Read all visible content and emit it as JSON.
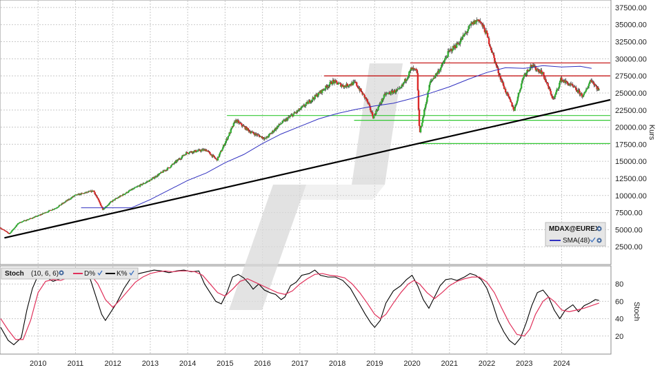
{
  "chart_data": [
    {
      "type": "candlestick",
      "ylabel": "Kurs",
      "ylim": [
        0,
        38500
      ],
      "y_ticks": [
        2500,
        5000,
        7500,
        10000,
        12500,
        15000,
        17500,
        20000,
        22500,
        25000,
        27500,
        30000,
        32500,
        35000,
        37500
      ],
      "y_tick_labels": [
        "2500.00",
        "5000.00",
        "7500.00",
        "10000.00",
        "12500.00",
        "15000.00",
        "17500.00",
        "20000.00",
        "22500.00",
        "25000.00",
        "27500.00",
        "30000.00",
        "32500.00",
        "35000.00",
        "37500.00"
      ],
      "x_range": [
        2009.0,
        2025.3
      ],
      "x_ticks": [
        "2010",
        "2011",
        "2012",
        "2013",
        "2014",
        "2015",
        "2016",
        "2017",
        "2018",
        "2019",
        "2020",
        "2021",
        "2022",
        "2023",
        "2024"
      ],
      "grid": true,
      "legend": {
        "placement": "bottom-right",
        "title": "MDAX@EUREX",
        "entries": [
          {
            "name": "SMA(48)",
            "color": "#3030c0"
          }
        ]
      },
      "price_path": [
        [
          2009.0,
          5300
        ],
        [
          2009.25,
          4400
        ],
        [
          2009.5,
          6000
        ],
        [
          2010.0,
          7000
        ],
        [
          2010.5,
          8200
        ],
        [
          2011.0,
          10000
        ],
        [
          2011.5,
          10700
        ],
        [
          2011.75,
          8000
        ],
        [
          2012.0,
          9200
        ],
        [
          2012.5,
          10800
        ],
        [
          2013.0,
          12200
        ],
        [
          2013.5,
          14000
        ],
        [
          2014.0,
          16300
        ],
        [
          2014.5,
          16700
        ],
        [
          2014.8,
          15200
        ],
        [
          2015.0,
          17500
        ],
        [
          2015.3,
          21000
        ],
        [
          2015.7,
          19300
        ],
        [
          2016.1,
          18300
        ],
        [
          2016.5,
          20500
        ],
        [
          2017.0,
          22500
        ],
        [
          2017.5,
          24800
        ],
        [
          2017.9,
          26700
        ],
        [
          2018.2,
          26000
        ],
        [
          2018.5,
          26500
        ],
        [
          2018.8,
          24000
        ],
        [
          2018.98,
          21500
        ],
        [
          2019.3,
          24800
        ],
        [
          2019.7,
          25500
        ],
        [
          2020.0,
          28500
        ],
        [
          2020.15,
          28200
        ],
        [
          2020.22,
          19000
        ],
        [
          2020.5,
          26500
        ],
        [
          2020.8,
          28800
        ],
        [
          2021.0,
          31000
        ],
        [
          2021.3,
          32500
        ],
        [
          2021.6,
          35000
        ],
        [
          2021.8,
          35800
        ],
        [
          2022.0,
          33800
        ],
        [
          2022.3,
          28500
        ],
        [
          2022.5,
          25500
        ],
        [
          2022.75,
          22500
        ],
        [
          2023.0,
          27500
        ],
        [
          2023.2,
          29000
        ],
        [
          2023.5,
          28000
        ],
        [
          2023.8,
          24000
        ],
        [
          2024.0,
          27000
        ],
        [
          2024.3,
          26000
        ],
        [
          2024.6,
          24500
        ],
        [
          2024.8,
          27000
        ],
        [
          2025.0,
          25500
        ]
      ],
      "sma48": [
        [
          2011.15,
          8200
        ],
        [
          2011.75,
          8200
        ],
        [
          2012.5,
          8200
        ],
        [
          2013.0,
          9400
        ],
        [
          2013.5,
          10800
        ],
        [
          2014.0,
          12200
        ],
        [
          2014.5,
          13300
        ],
        [
          2015.0,
          14800
        ],
        [
          2015.5,
          16000
        ],
        [
          2016.0,
          17600
        ],
        [
          2016.5,
          19000
        ],
        [
          2017.0,
          20100
        ],
        [
          2017.5,
          21200
        ],
        [
          2018.0,
          22000
        ],
        [
          2018.5,
          22600
        ],
        [
          2019.0,
          23100
        ],
        [
          2019.5,
          23500
        ],
        [
          2020.0,
          24200
        ],
        [
          2020.5,
          25000
        ],
        [
          2021.0,
          25900
        ],
        [
          2021.5,
          27000
        ],
        [
          2022.0,
          28000
        ],
        [
          2022.5,
          28700
        ],
        [
          2023.0,
          28600
        ],
        [
          2023.5,
          29000
        ],
        [
          2024.0,
          28800
        ],
        [
          2024.5,
          28900
        ],
        [
          2024.8,
          28600
        ]
      ],
      "trendline": [
        [
          2009.1,
          3800
        ],
        [
          2025.3,
          24000
        ]
      ],
      "horizontal_lines": [
        {
          "color": "#c00000",
          "y": 29400,
          "x_from": 2019.95,
          "x_to": 2025.3
        },
        {
          "color": "#c00000",
          "y": 27500,
          "x_from": 2017.65,
          "x_to": 2025.3
        },
        {
          "color": "#32c832",
          "y": 21700,
          "x_from": 2015.05,
          "x_to": 2025.3
        },
        {
          "color": "#32c832",
          "y": 21000,
          "x_from": 2018.45,
          "x_to": 2025.3
        },
        {
          "color": "#32c832",
          "y": 17600,
          "x_from": 2020.2,
          "x_to": 2025.3
        }
      ]
    },
    {
      "type": "line",
      "ylabel": "Stoch",
      "ylim": [
        0,
        100
      ],
      "y_ticks": [
        20,
        40,
        60,
        80
      ],
      "y_tick_labels": [
        "20",
        "40",
        "60",
        "80"
      ],
      "grid": true,
      "legend": {
        "placement": "top-left",
        "title": "Stoch",
        "params": "(10, 6, 6)",
        "entries": [
          {
            "name": "D%",
            "color": "#e0305a"
          },
          {
            "name": "K%",
            "color": "#000000"
          }
        ]
      },
      "series": [
        {
          "name": "K%",
          "color": "#000000",
          "points": [
            [
              2009.0,
              30
            ],
            [
              2009.2,
              15
            ],
            [
              2009.35,
              10
            ],
            [
              2009.55,
              18
            ],
            [
              2009.7,
              50
            ],
            [
              2009.85,
              75
            ],
            [
              2010.0,
              90
            ],
            [
              2010.2,
              88
            ],
            [
              2010.4,
              83
            ],
            [
              2010.6,
              86
            ],
            [
              2010.8,
              92
            ],
            [
              2011.0,
              96
            ],
            [
              2011.2,
              95
            ],
            [
              2011.4,
              85
            ],
            [
              2011.55,
              65
            ],
            [
              2011.7,
              45
            ],
            [
              2011.8,
              38
            ],
            [
              2011.95,
              48
            ],
            [
              2012.1,
              58
            ],
            [
              2012.3,
              75
            ],
            [
              2012.5,
              88
            ],
            [
              2012.7,
              92
            ],
            [
              2012.9,
              94
            ],
            [
              2013.1,
              96
            ],
            [
              2013.3,
              95
            ],
            [
              2013.5,
              93
            ],
            [
              2013.7,
              95
            ],
            [
              2013.9,
              96
            ],
            [
              2014.1,
              94
            ],
            [
              2014.3,
              95
            ],
            [
              2014.45,
              80
            ],
            [
              2014.6,
              70
            ],
            [
              2014.75,
              60
            ],
            [
              2014.9,
              57
            ],
            [
              2015.05,
              70
            ],
            [
              2015.2,
              88
            ],
            [
              2015.35,
              91
            ],
            [
              2015.5,
              87
            ],
            [
              2015.65,
              80
            ],
            [
              2015.75,
              74
            ],
            [
              2015.9,
              80
            ],
            [
              2016.05,
              73
            ],
            [
              2016.2,
              70
            ],
            [
              2016.35,
              68
            ],
            [
              2016.5,
              62
            ],
            [
              2016.6,
              65
            ],
            [
              2016.75,
              78
            ],
            [
              2016.9,
              82
            ],
            [
              2017.05,
              90
            ],
            [
              2017.25,
              92
            ],
            [
              2017.4,
              96
            ],
            [
              2017.55,
              90
            ],
            [
              2017.75,
              88
            ],
            [
              2017.95,
              88
            ],
            [
              2018.15,
              84
            ],
            [
              2018.35,
              75
            ],
            [
              2018.55,
              60
            ],
            [
              2018.75,
              45
            ],
            [
              2018.9,
              35
            ],
            [
              2019.0,
              30
            ],
            [
              2019.15,
              38
            ],
            [
              2019.3,
              58
            ],
            [
              2019.5,
              72
            ],
            [
              2019.7,
              78
            ],
            [
              2019.85,
              85
            ],
            [
              2020.0,
              90
            ],
            [
              2020.15,
              78
            ],
            [
              2020.3,
              62
            ],
            [
              2020.45,
              52
            ],
            [
              2020.6,
              65
            ],
            [
              2020.75,
              78
            ],
            [
              2020.9,
              85
            ],
            [
              2021.05,
              86
            ],
            [
              2021.2,
              84
            ],
            [
              2021.4,
              88
            ],
            [
              2021.55,
              92
            ],
            [
              2021.7,
              90
            ],
            [
              2021.85,
              85
            ],
            [
              2022.0,
              75
            ],
            [
              2022.15,
              58
            ],
            [
              2022.3,
              38
            ],
            [
              2022.45,
              25
            ],
            [
              2022.6,
              15
            ],
            [
              2022.75,
              10
            ],
            [
              2022.9,
              18
            ],
            [
              2023.05,
              35
            ],
            [
              2023.2,
              55
            ],
            [
              2023.35,
              70
            ],
            [
              2023.5,
              73
            ],
            [
              2023.65,
              65
            ],
            [
              2023.8,
              50
            ],
            [
              2023.95,
              40
            ],
            [
              2024.1,
              50
            ],
            [
              2024.3,
              56
            ],
            [
              2024.45,
              48
            ],
            [
              2024.6,
              55
            ],
            [
              2024.75,
              58
            ],
            [
              2024.9,
              62
            ],
            [
              2025.0,
              61
            ]
          ]
        },
        {
          "name": "D%",
          "color": "#e0305a",
          "points": [
            [
              2009.0,
              40
            ],
            [
              2009.2,
              27
            ],
            [
              2009.4,
              16
            ],
            [
              2009.6,
              16
            ],
            [
              2009.8,
              38
            ],
            [
              2010.0,
              70
            ],
            [
              2010.2,
              83
            ],
            [
              2010.4,
              85
            ],
            [
              2010.6,
              84
            ],
            [
              2010.8,
              87
            ],
            [
              2011.0,
              91
            ],
            [
              2011.2,
              93
            ],
            [
              2011.4,
              91
            ],
            [
              2011.6,
              80
            ],
            [
              2011.8,
              62
            ],
            [
              2012.0,
              53
            ],
            [
              2012.2,
              62
            ],
            [
              2012.4,
              72
            ],
            [
              2012.6,
              82
            ],
            [
              2012.8,
              88
            ],
            [
              2013.0,
              92
            ],
            [
              2013.2,
              94
            ],
            [
              2013.4,
              95
            ],
            [
              2013.6,
              94
            ],
            [
              2013.8,
              95
            ],
            [
              2014.0,
              95
            ],
            [
              2014.2,
              94
            ],
            [
              2014.4,
              90
            ],
            [
              2014.6,
              80
            ],
            [
              2014.8,
              70
            ],
            [
              2015.0,
              66
            ],
            [
              2015.2,
              74
            ],
            [
              2015.4,
              83
            ],
            [
              2015.6,
              86
            ],
            [
              2015.8,
              82
            ],
            [
              2016.0,
              78
            ],
            [
              2016.2,
              74
            ],
            [
              2016.4,
              70
            ],
            [
              2016.6,
              68
            ],
            [
              2016.8,
              72
            ],
            [
              2017.0,
              80
            ],
            [
              2017.2,
              86
            ],
            [
              2017.4,
              91
            ],
            [
              2017.6,
              92
            ],
            [
              2017.8,
              90
            ],
            [
              2018.0,
              89
            ],
            [
              2018.2,
              87
            ],
            [
              2018.4,
              80
            ],
            [
              2018.6,
              70
            ],
            [
              2018.8,
              58
            ],
            [
              2019.0,
              45
            ],
            [
              2019.15,
              40
            ],
            [
              2019.3,
              45
            ],
            [
              2019.5,
              58
            ],
            [
              2019.7,
              70
            ],
            [
              2019.9,
              80
            ],
            [
              2020.05,
              84
            ],
            [
              2020.2,
              80
            ],
            [
              2020.4,
              70
            ],
            [
              2020.6,
              63
            ],
            [
              2020.8,
              70
            ],
            [
              2021.0,
              78
            ],
            [
              2021.2,
              83
            ],
            [
              2021.4,
              86
            ],
            [
              2021.6,
              88
            ],
            [
              2021.8,
              88
            ],
            [
              2022.0,
              82
            ],
            [
              2022.2,
              70
            ],
            [
              2022.4,
              52
            ],
            [
              2022.6,
              35
            ],
            [
              2022.8,
              22
            ],
            [
              2023.0,
              20
            ],
            [
              2023.15,
              28
            ],
            [
              2023.3,
              45
            ],
            [
              2023.5,
              60
            ],
            [
              2023.65,
              65
            ],
            [
              2023.8,
              60
            ],
            [
              2024.0,
              50
            ],
            [
              2024.2,
              48
            ],
            [
              2024.4,
              50
            ],
            [
              2024.6,
              52
            ],
            [
              2024.8,
              55
            ],
            [
              2025.0,
              58
            ]
          ]
        }
      ]
    }
  ],
  "icons": {
    "settings": "gear-icon",
    "visible": "check-icon"
  },
  "colors": {
    "up_candle": "#32b432",
    "down_candle": "#dc2828",
    "trendline": "#000000",
    "sma": "#3030c0",
    "grid": "#c8c8c8",
    "watermark": "#d2d2d2"
  }
}
